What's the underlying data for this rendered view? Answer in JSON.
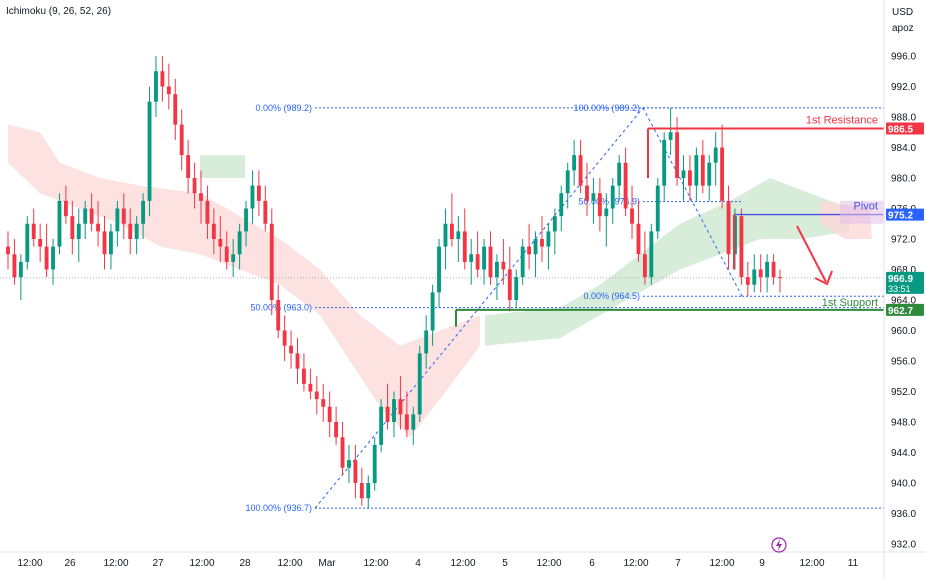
{
  "indicator_label": "Ichimoku (9, 26, 52, 26)",
  "currency": "USD",
  "scale_mode": "apoz",
  "chart_data": {
    "type": "candlestick",
    "title": "",
    "y_ticks": [
      "932.0",
      "936.0",
      "940.0",
      "944.0",
      "948.0",
      "952.0",
      "956.0",
      "960.0",
      "964.0",
      "968.0",
      "972.0",
      "976.0",
      "980.0",
      "984.0",
      "988.0",
      "992.0",
      "996.0"
    ],
    "ylim": [
      931,
      999
    ],
    "x_ticks": [
      "12:00",
      "26",
      "12:00",
      "27",
      "12:00",
      "28",
      "12:00",
      "Mar",
      "12:00",
      "4",
      "12:00",
      "5",
      "12:00",
      "6",
      "12:00",
      "7",
      "12:00",
      "9",
      "12:00",
      "11"
    ],
    "colors": {
      "up": "#089981",
      "down": "#f23645",
      "cloud_bull": "#c8e6c9",
      "cloud_bear": "#fcd8d8",
      "fib": "#2962ff",
      "resistance": "#f23645",
      "support": "#2e8b3a",
      "pivot": "#4a4ee0"
    },
    "price_labels": [
      {
        "name": "1st Resistance",
        "value": "986.5",
        "color": "#f23645"
      },
      {
        "name": "Pivot",
        "value": "975.2",
        "color": "#2962ff"
      },
      {
        "name": "1st Support",
        "value": "962.7",
        "color": "#2e8b3a"
      },
      {
        "name": "last",
        "value": "966.9",
        "color": "#089981"
      }
    ],
    "countdown": "33:51",
    "levels": [
      {
        "label": "1st Resistance",
        "value": 986.5
      },
      {
        "label": "Pivot",
        "value": 975.2
      },
      {
        "label": "1st Support",
        "value": 962.7
      }
    ],
    "fibonacci_1": [
      {
        "text": "0.00% (989.2)",
        "value": 989.2
      },
      {
        "text": "50.00% (963.0)",
        "value": 963.0
      },
      {
        "text": "100.00% (936.7)",
        "value": 936.7
      }
    ],
    "fibonacci_2": [
      {
        "text": "100.00% (989.2)",
        "value": 989.2
      },
      {
        "text": "50.00% (976.9)",
        "value": 976.9
      },
      {
        "text": "0.00% (964.5)",
        "value": 964.5
      }
    ],
    "candles": [
      [
        971,
        973,
        968,
        970
      ],
      [
        970,
        972,
        966,
        967
      ],
      [
        967,
        970,
        964,
        969
      ],
      [
        969,
        975,
        968,
        974
      ],
      [
        974,
        976,
        971,
        972
      ],
      [
        972,
        974,
        969,
        971
      ],
      [
        971,
        974,
        967,
        968
      ],
      [
        968,
        972,
        966,
        971
      ],
      [
        971,
        978,
        970,
        977
      ],
      [
        977,
        979,
        974,
        975
      ],
      [
        975,
        977,
        970,
        972
      ],
      [
        972,
        976,
        969,
        974
      ],
      [
        974,
        977,
        972,
        976
      ],
      [
        976,
        978,
        973,
        974
      ],
      [
        974,
        977,
        971,
        973
      ],
      [
        973,
        975,
        968,
        970
      ],
      [
        970,
        974,
        968,
        973
      ],
      [
        973,
        977,
        971,
        976
      ],
      [
        976,
        978,
        972,
        974
      ],
      [
        974,
        976,
        970,
        972
      ],
      [
        972,
        975,
        970,
        974
      ],
      [
        974,
        978,
        972,
        977
      ],
      [
        977,
        992,
        975,
        990
      ],
      [
        990,
        996,
        988,
        994
      ],
      [
        994,
        996,
        990,
        992
      ],
      [
        992,
        995,
        989,
        991
      ],
      [
        991,
        993,
        985,
        987
      ],
      [
        987,
        989,
        981,
        983
      ],
      [
        983,
        985,
        978,
        980
      ],
      [
        980,
        982,
        976,
        978
      ],
      [
        978,
        981,
        974,
        977
      ],
      [
        977,
        979,
        972,
        974
      ],
      [
        974,
        976,
        970,
        972
      ],
      [
        972,
        975,
        969,
        971
      ],
      [
        971,
        973,
        968,
        969
      ],
      [
        969,
        972,
        967,
        970
      ],
      [
        970,
        974,
        968,
        973
      ],
      [
        973,
        977,
        971,
        976
      ],
      [
        976,
        981,
        974,
        979
      ],
      [
        979,
        981,
        975,
        977
      ],
      [
        977,
        979,
        973,
        974
      ],
      [
        974,
        976,
        962,
        964
      ],
      [
        964,
        966,
        959,
        960
      ],
      [
        960,
        962,
        956,
        958
      ],
      [
        958,
        960,
        955,
        957
      ],
      [
        957,
        959,
        953,
        955
      ],
      [
        955,
        957,
        952,
        953
      ],
      [
        953,
        955,
        951,
        952
      ],
      [
        952,
        954,
        949,
        951
      ],
      [
        951,
        953,
        948,
        950
      ],
      [
        950,
        952,
        946,
        948
      ],
      [
        948,
        950,
        945,
        946
      ],
      [
        946,
        948,
        941,
        942
      ],
      [
        942,
        945,
        940,
        943
      ],
      [
        943,
        945,
        938,
        940
      ],
      [
        940,
        942,
        937,
        938
      ],
      [
        938,
        941,
        936.7,
        940
      ],
      [
        940,
        946,
        939,
        945
      ],
      [
        945,
        951,
        944,
        950
      ],
      [
        950,
        953,
        947,
        948
      ],
      [
        948,
        952,
        946,
        951
      ],
      [
        951,
        954,
        947,
        949
      ],
      [
        949,
        952,
        946,
        947
      ],
      [
        947,
        950,
        945,
        949
      ],
      [
        949,
        958,
        948,
        957
      ],
      [
        957,
        962,
        955,
        960
      ],
      [
        960,
        966,
        958,
        965
      ],
      [
        965,
        972,
        963,
        971
      ],
      [
        971,
        976,
        968,
        974
      ],
      [
        974,
        978,
        971,
        972
      ],
      [
        972,
        975,
        969,
        973
      ],
      [
        973,
        976,
        968,
        969
      ],
      [
        969,
        972,
        966,
        970
      ],
      [
        970,
        973,
        967,
        968
      ],
      [
        968,
        972,
        966,
        971
      ],
      [
        971,
        973,
        966,
        967
      ],
      [
        967,
        970,
        964,
        969
      ],
      [
        969,
        972,
        966,
        968
      ],
      [
        968,
        971,
        962.5,
        964
      ],
      [
        964,
        968,
        963,
        967
      ],
      [
        967,
        972,
        966,
        971
      ],
      [
        971,
        974,
        968,
        970
      ],
      [
        970,
        973,
        967,
        972
      ],
      [
        972,
        975,
        969,
        971
      ],
      [
        971,
        974,
        968,
        973
      ],
      [
        973,
        976,
        970,
        975
      ],
      [
        975,
        979,
        973,
        978
      ],
      [
        978,
        982,
        976,
        981
      ],
      [
        981,
        985,
        979,
        983
      ],
      [
        983,
        985,
        978,
        979
      ],
      [
        979,
        982,
        975,
        977
      ],
      [
        977,
        980,
        974,
        978
      ],
      [
        978,
        980,
        973,
        975
      ],
      [
        975,
        978,
        971,
        976
      ],
      [
        976,
        980,
        974,
        979
      ],
      [
        979,
        983,
        977,
        982
      ],
      [
        982,
        984,
        975,
        976
      ],
      [
        976,
        979,
        972,
        974
      ],
      [
        974,
        977,
        969,
        970
      ],
      [
        970,
        973,
        966,
        967
      ],
      [
        967,
        974,
        966,
        973
      ],
      [
        973,
        980,
        972,
        979
      ],
      [
        979,
        986,
        977,
        985
      ],
      [
        985,
        989.2,
        983,
        986
      ],
      [
        986,
        988,
        979,
        980
      ],
      [
        980,
        983,
        977,
        981
      ],
      [
        981,
        983,
        977,
        979
      ],
      [
        979,
        984,
        977,
        983
      ],
      [
        983,
        985,
        978,
        979
      ],
      [
        979,
        983,
        977,
        982
      ],
      [
        982,
        986,
        979,
        984
      ],
      [
        984,
        987,
        976,
        977
      ],
      [
        977,
        979,
        968,
        970
      ],
      [
        970,
        976,
        968,
        975
      ],
      [
        975,
        976,
        966,
        967
      ],
      [
        967,
        969,
        964.5,
        966
      ],
      [
        966,
        970,
        965,
        968
      ],
      [
        968,
        970,
        965,
        967
      ],
      [
        967,
        970,
        965,
        969
      ],
      [
        969,
        970,
        966,
        967
      ],
      [
        967,
        968,
        965,
        966.9
      ]
    ]
  }
}
